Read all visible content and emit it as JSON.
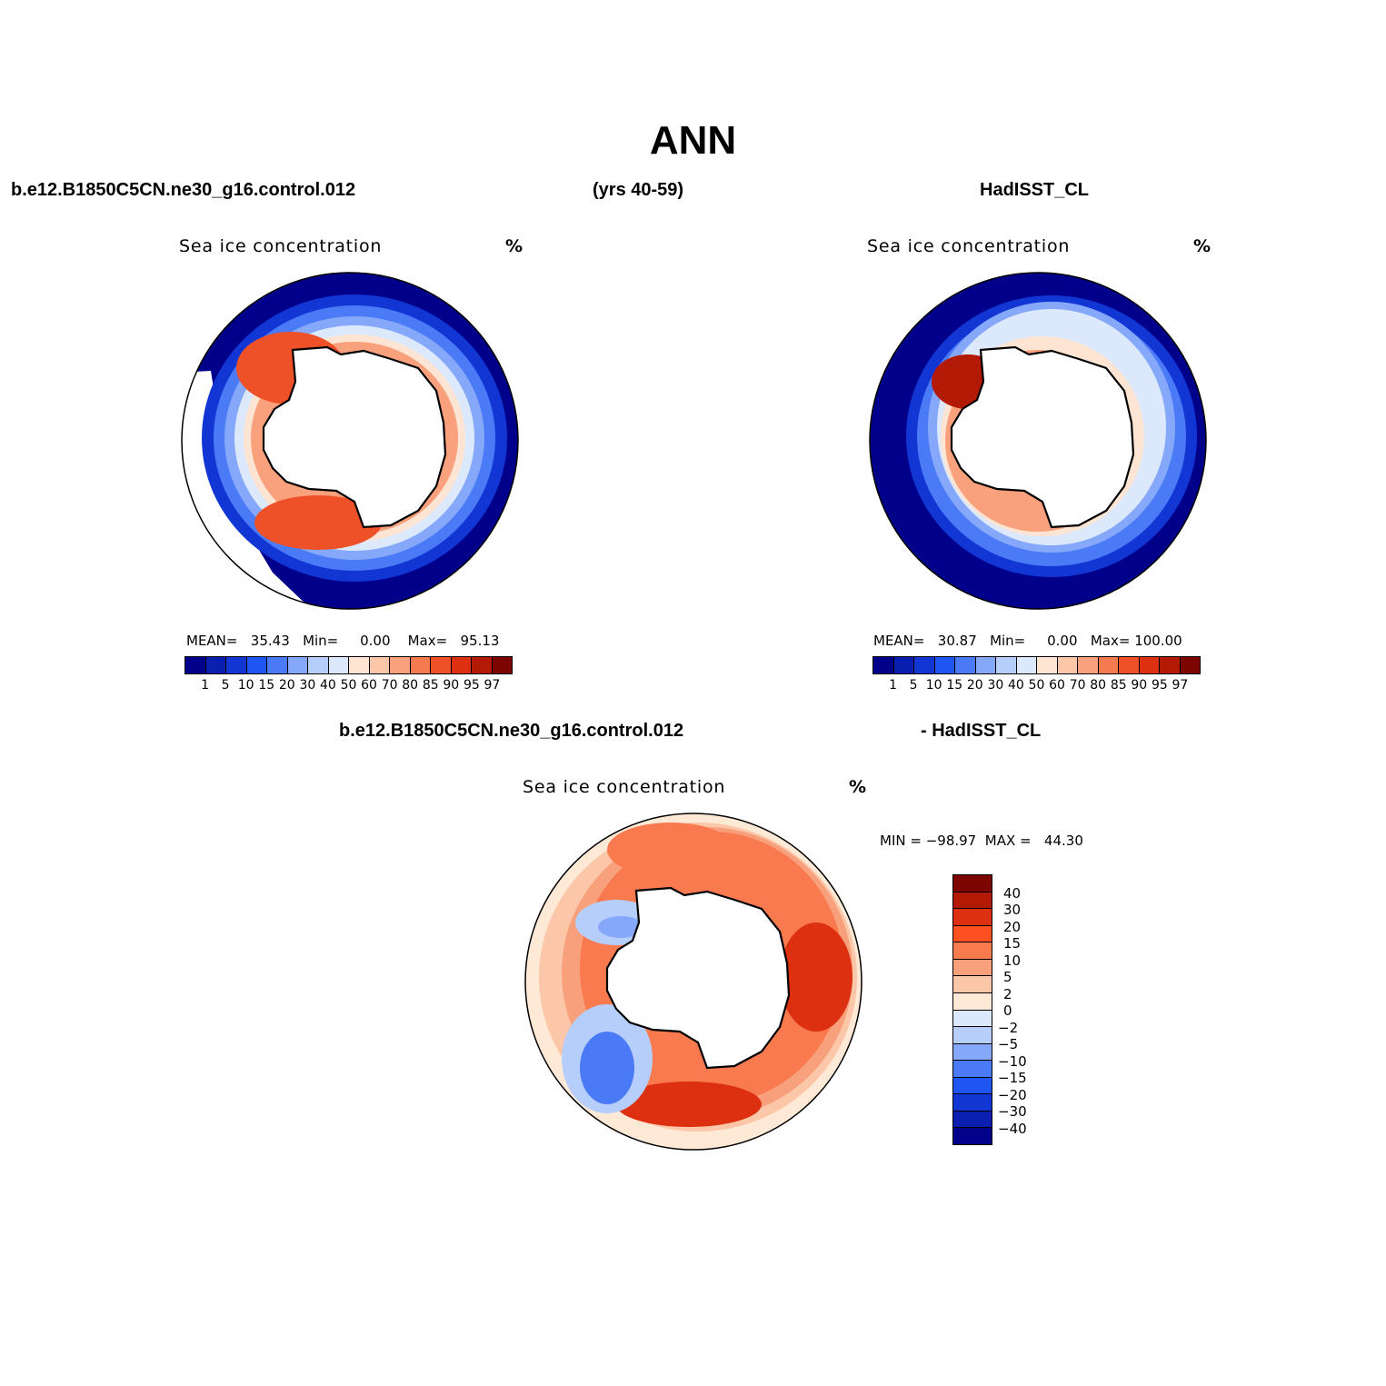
{
  "title": "ANN",
  "header": {
    "model": "b.e12.B1850C5CN.ne30_g16.control.012",
    "years": "(yrs 40-59)",
    "obs": "HadISST_CL"
  },
  "diff_header": {
    "model": "b.e12.B1850C5CN.ne30_g16.control.012",
    "obs": "- HadISST_CL"
  },
  "panels": {
    "model": {
      "title": "Sea ice concentration",
      "unit": "%",
      "mean_label": "MEAN=",
      "mean": "35.43",
      "min_label": "Min=",
      "min": "0.00",
      "max_label": "Max=",
      "max": "95.13"
    },
    "obs": {
      "title": "Sea ice concentration",
      "unit": "%",
      "mean_label": "MEAN=",
      "mean": "30.87",
      "min_label": "Min=",
      "min": "0.00",
      "max_label": "Max=",
      "max": "100.00"
    },
    "diff": {
      "title": "Sea ice concentration",
      "unit": "%",
      "min_label": "MIN =",
      "min": "−98.97",
      "max_label": "MAX =",
      "max": "44.30"
    }
  },
  "colorbar_abs": {
    "levels": [
      "1",
      "5",
      "10",
      "15",
      "20",
      "30",
      "40",
      "50",
      "60",
      "70",
      "80",
      "85",
      "90",
      "95",
      "97"
    ],
    "colors": [
      "#00008a",
      "#0a1fb0",
      "#1236d4",
      "#1f55f0",
      "#4a7af5",
      "#86a8fa",
      "#b6cefc",
      "#dce9fd",
      "#fee4d2",
      "#fcc6a8",
      "#f9a07c",
      "#f57a50",
      "#ee5027",
      "#dd3010",
      "#b21a05",
      "#7d0700"
    ]
  },
  "colorbar_diff": {
    "levels": [
      "40",
      "30",
      "20",
      "15",
      "10",
      "5",
      "2",
      "0",
      "−2",
      "−5",
      "−10",
      "−15",
      "−20",
      "−30",
      "−40"
    ],
    "colors": [
      "#7d0700",
      "#b21a05",
      "#dd3010",
      "#fe5020",
      "#f87a4e",
      "#f8a07c",
      "#fcc6a8",
      "#fee8d6",
      "#dce9fd",
      "#b6cefc",
      "#86a8fa",
      "#4a7af5",
      "#1f55f0",
      "#1236d4",
      "#0a1fb0",
      "#00008a"
    ]
  },
  "chart_data": {
    "type": "heatmap",
    "projection": "south polar stereographic",
    "variable": "Sea ice concentration",
    "units": "%",
    "season": "ANN",
    "panels": [
      {
        "name": "b.e12.B1850C5CN.ne30_g16.control.012 (yrs 40-59)",
        "mean": 35.43,
        "min": 0.0,
        "max": 95.13
      },
      {
        "name": "HadISST_CL",
        "mean": 30.87,
        "min": 0.0,
        "max": 100.0
      },
      {
        "name": "b.e12.B1850C5CN.ne30_g16.control.012 - HadISST_CL",
        "min": -98.97,
        "max": 44.3
      }
    ]
  }
}
